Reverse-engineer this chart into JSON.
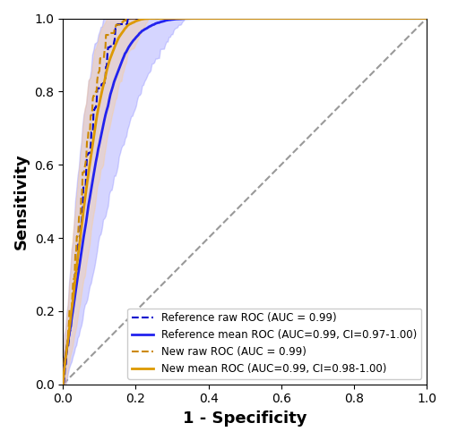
{
  "title": "",
  "xlabel": "1 - Specificity",
  "ylabel": "Sensitivity",
  "xlim": [
    0.0,
    1.0
  ],
  "ylim": [
    0.0,
    1.0
  ],
  "diagonal_color": "#999999",
  "ref_raw_color": "#0000cc",
  "ref_mean_color": "#2222ee",
  "new_raw_color": "#cc8800",
  "new_mean_color": "#dd9900",
  "ref_ci_color": "#8888ff",
  "new_ci_color": "#ffcc88",
  "ref_raw_label": "Reference raw ROC (AUC = 0.99)",
  "ref_mean_label": "Reference mean ROC (AUC=0.99, CI=0.97-1.00)",
  "new_raw_label": "New raw ROC (AUC = 0.99)",
  "new_mean_label": "New mean ROC (AUC=0.99, CI=0.98-1.00)",
  "legend_loc": "lower right",
  "figsize": [
    5.02,
    4.92
  ],
  "dpi": 100,
  "random_seed": 42
}
